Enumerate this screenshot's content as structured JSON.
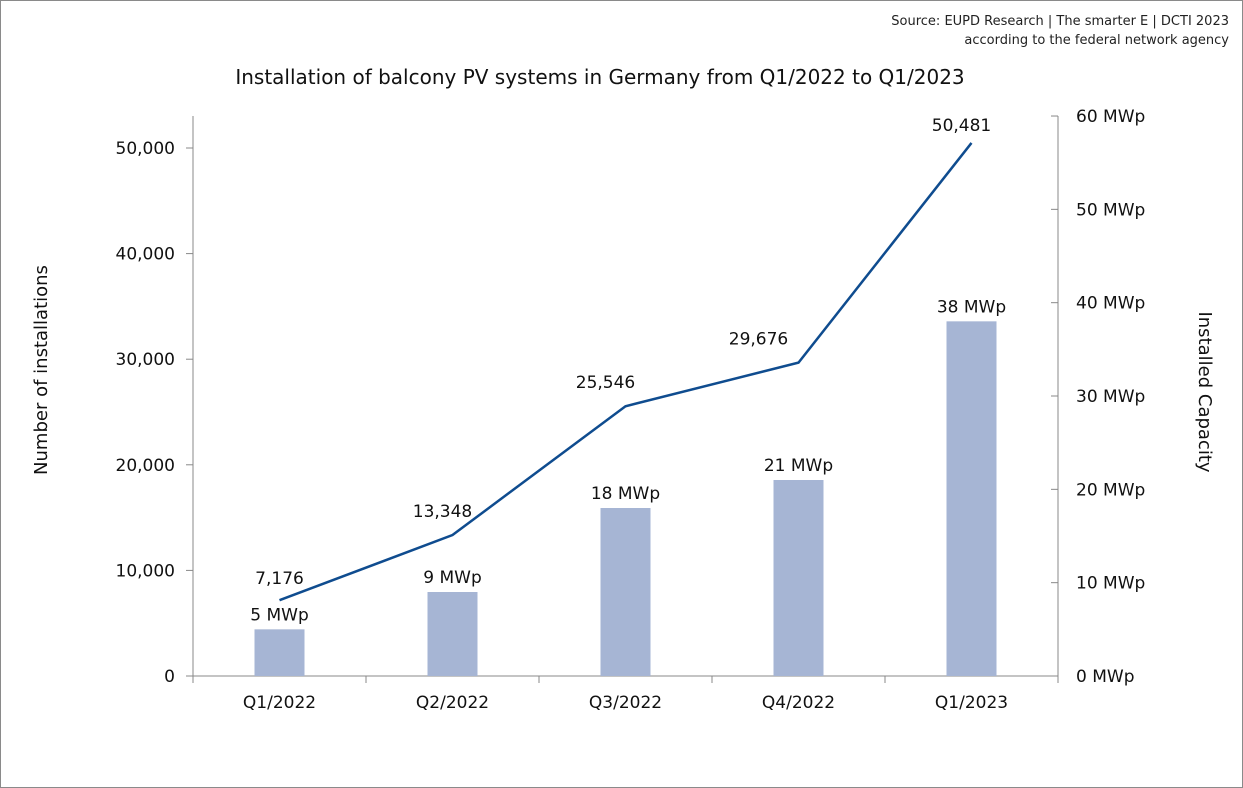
{
  "source_line1": "Source: EUPD Research | The smarter E | DCTI 2023",
  "source_line2": "according to the federal network agency",
  "chart_data": {
    "type": "bar+line",
    "title": "Installation of balcony PV systems in Germany from Q1/2022 to Q1/2023",
    "categories": [
      "Q1/2022",
      "Q2/2022",
      "Q3/2022",
      "Q4/2022",
      "Q1/2023"
    ],
    "series": [
      {
        "name": "Installed Capacity",
        "type": "bar",
        "axis": "right",
        "values": [
          5,
          9,
          18,
          21,
          38
        ],
        "labels": [
          "5 MWp",
          "9 MWp",
          "18 MWp",
          "21 MWp",
          "38 MWp"
        ],
        "color": "#a6b5d4"
      },
      {
        "name": "Number of installations",
        "type": "line",
        "axis": "left",
        "values": [
          7176,
          13348,
          25546,
          29676,
          50481
        ],
        "labels": [
          "7,176",
          "13,348",
          "25,546",
          "29,676",
          "50,481"
        ],
        "color": "#0f4c8f"
      }
    ],
    "ylabel": "Number of installations",
    "ylim": [
      0,
      53000
    ],
    "yticks": [
      "0",
      "10,000",
      "20,000",
      "30,000",
      "40,000",
      "50,000"
    ],
    "y2label": "Installed Capacity",
    "y2lim": [
      0,
      60
    ],
    "y2ticks": [
      "0 MWp",
      "10 MWp",
      "20 MWp",
      "30 MWp",
      "40 MWp",
      "50 MWp",
      "60 MWp"
    ],
    "grid": false,
    "legend": "none"
  }
}
